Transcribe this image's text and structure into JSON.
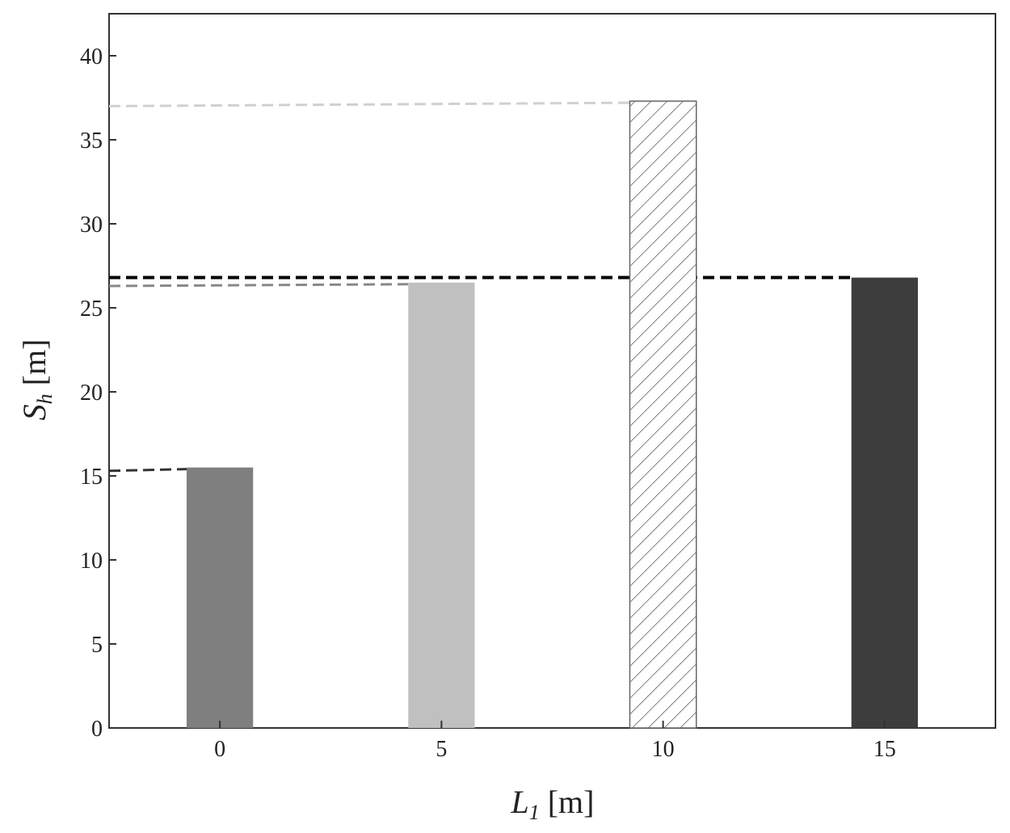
{
  "chart_data": {
    "type": "bar",
    "categories": [
      "0",
      "5",
      "10",
      "15"
    ],
    "values": [
      15.5,
      26.5,
      37.3,
      26.8
    ],
    "reference_lines": [
      15.3,
      26.3,
      37.0,
      26.8
    ],
    "bar_fills": [
      "#7f7f7f",
      "#c0c0c0",
      "hatch",
      "#3d3d3d"
    ],
    "reference_line_colors": [
      "#333333",
      "#888888",
      "#d0d0d0",
      "#000000"
    ],
    "ylim": [
      0,
      42.5
    ],
    "yticks": [
      0,
      5,
      10,
      15,
      20,
      25,
      30,
      35,
      40
    ],
    "xlabel": {
      "symbol": "L",
      "sub": "1",
      "unit": "[m]"
    },
    "ylabel": {
      "symbol": "S",
      "sub": "h",
      "unit": "[m]"
    },
    "grid": false,
    "legend": "none"
  }
}
